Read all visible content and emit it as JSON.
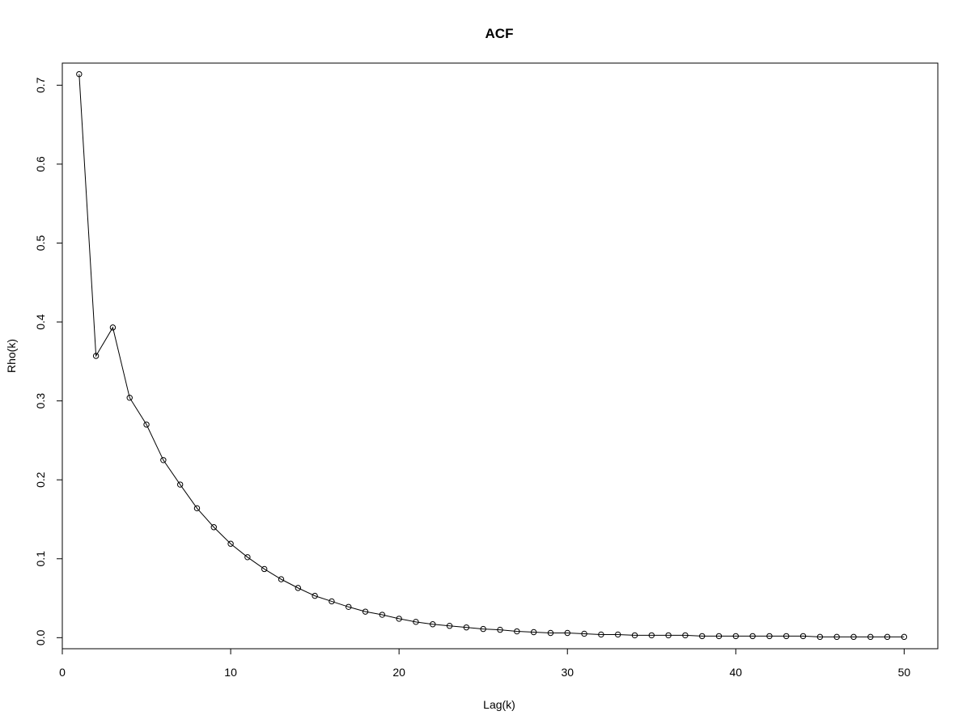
{
  "chart_data": {
    "type": "line",
    "title": "ACF",
    "xlabel": "Lag(k)",
    "ylabel": "Rho(k)",
    "xlim": [
      0,
      52
    ],
    "ylim": [
      -0.014,
      0.728
    ],
    "xticks": [
      0,
      10,
      20,
      30,
      40,
      50
    ],
    "yticks": [
      0.0,
      0.1,
      0.2,
      0.3,
      0.4,
      0.5,
      0.6,
      0.7
    ],
    "xtick_labels": [
      "0",
      "10",
      "20",
      "30",
      "40",
      "50"
    ],
    "ytick_labels": [
      "0.0",
      "0.1",
      "0.2",
      "0.3",
      "0.4",
      "0.5",
      "0.6",
      "0.7"
    ],
    "grid": false,
    "markers": "open-circle",
    "line_color": "#000000",
    "x": [
      1,
      2,
      3,
      4,
      5,
      6,
      7,
      8,
      9,
      10,
      11,
      12,
      13,
      14,
      15,
      16,
      17,
      18,
      19,
      20,
      21,
      22,
      23,
      24,
      25,
      26,
      27,
      28,
      29,
      30,
      31,
      32,
      33,
      34,
      35,
      36,
      37,
      38,
      39,
      40,
      41,
      42,
      43,
      44,
      45,
      46,
      47,
      48,
      49,
      50
    ],
    "y": [
      0.714,
      0.357,
      0.393,
      0.304,
      0.27,
      0.225,
      0.194,
      0.164,
      0.14,
      0.119,
      0.102,
      0.087,
      0.074,
      0.063,
      0.053,
      0.046,
      0.039,
      0.033,
      0.029,
      0.024,
      0.02,
      0.017,
      0.015,
      0.013,
      0.011,
      0.01,
      0.008,
      0.007,
      0.006,
      0.006,
      0.005,
      0.004,
      0.004,
      0.003,
      0.003,
      0.003,
      0.003,
      0.002,
      0.002,
      0.002,
      0.002,
      0.002,
      0.002,
      0.002,
      0.001,
      0.001,
      0.001,
      0.001,
      0.001,
      0.001
    ]
  }
}
